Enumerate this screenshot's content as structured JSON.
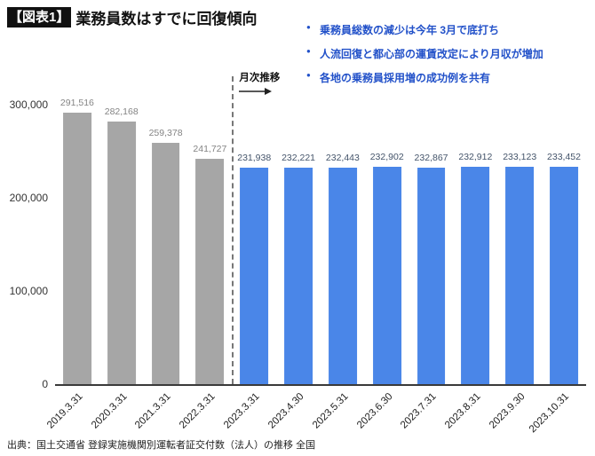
{
  "header": {
    "tag": "【図表1】",
    "title": "業務員数はすでに回復傾向"
  },
  "bullets": [
    "乗務員総数の減少は今年 3月で底打ち",
    "人流回復と都心部の運賃改定により月収が増加",
    "各地の乗務員採用増の成功例を共有"
  ],
  "annotation": {
    "label": "月次推移"
  },
  "footer": {
    "source": "出典：国土交通省 登録実施機関別運転者証交付数（法人）の推移 全国"
  },
  "colors": {
    "bullet_text": "#2251c9",
    "yearly_bar": "#a6a6a6",
    "monthly_bar": "#4a86e8",
    "yearly_value_label": "#848484",
    "monthly_value_label": "#44546a",
    "axis_line": "#3a3a3a"
  },
  "chart_data": {
    "type": "bar",
    "title": "業務員数はすでに回復傾向",
    "xlabel": "",
    "ylabel": "",
    "ylim": [
      0,
      300000
    ],
    "grid": false,
    "legend": false,
    "yticks": [
      300000,
      200000,
      100000,
      0
    ],
    "ytick_labels": [
      "300,000",
      "200,000",
      "100,000",
      "0"
    ],
    "separator_annotation": "月次推移",
    "series": [
      {
        "name": "yearly",
        "color": "#a6a6a6",
        "label_color": "#848484",
        "points": [
          {
            "category": "2019.3.31",
            "value": 291516,
            "label": "291,516"
          },
          {
            "category": "2020.3.31",
            "value": 282168,
            "label": "282,168"
          },
          {
            "category": "2021.3.31",
            "value": 259378,
            "label": "259,378"
          },
          {
            "category": "2022.3.31",
            "value": 241727,
            "label": "241,727"
          }
        ]
      },
      {
        "name": "monthly",
        "color": "#4a86e8",
        "label_color": "#44546a",
        "points": [
          {
            "category": "2023.3.31",
            "value": 231938,
            "label": "231,938"
          },
          {
            "category": "2023.4.30",
            "value": 232221,
            "label": "232,221"
          },
          {
            "category": "2023.5.31",
            "value": 232443,
            "label": "232,443"
          },
          {
            "category": "2023.6.30",
            "value": 232902,
            "label": "232,902"
          },
          {
            "category": "2023.7.31",
            "value": 232867,
            "label": "232,867"
          },
          {
            "category": "2023.8.31",
            "value": 232912,
            "label": "232,912"
          },
          {
            "category": "2023.9.30",
            "value": 233123,
            "label": "233,123"
          },
          {
            "category": "2023.10.31",
            "value": 233452,
            "label": "233,452"
          }
        ]
      }
    ]
  }
}
